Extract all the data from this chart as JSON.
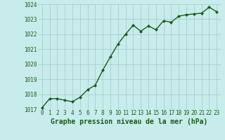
{
  "x": [
    0,
    1,
    2,
    3,
    4,
    5,
    6,
    7,
    8,
    9,
    10,
    11,
    12,
    13,
    14,
    15,
    16,
    17,
    18,
    19,
    20,
    21,
    22,
    23
  ],
  "y": [
    1017.1,
    1017.7,
    1017.7,
    1017.6,
    1017.5,
    1017.8,
    1018.3,
    1018.6,
    1019.6,
    1020.5,
    1021.35,
    1022.0,
    1022.6,
    1022.2,
    1022.55,
    1022.3,
    1022.9,
    1022.8,
    1023.2,
    1023.3,
    1023.35,
    1023.4,
    1023.8,
    1023.5
  ],
  "line_color": "#1a5c1a",
  "marker": "D",
  "marker_size": 2.0,
  "bg_color": "#c8ecec",
  "grid_color": "#a0c8c8",
  "title": "Graphe pression niveau de la mer (hPa)",
  "ylim": [
    1017.0,
    1024.0
  ],
  "xlim": [
    -0.5,
    23.5
  ],
  "yticks": [
    1017,
    1018,
    1019,
    1020,
    1021,
    1022,
    1023,
    1024
  ],
  "xticks": [
    0,
    1,
    2,
    3,
    4,
    5,
    6,
    7,
    8,
    9,
    10,
    11,
    12,
    13,
    14,
    15,
    16,
    17,
    18,
    19,
    20,
    21,
    22,
    23
  ],
  "title_fontsize": 7.0,
  "tick_fontsize": 5.5,
  "title_color": "#1a5c1a",
  "tick_color": "#1a5c1a",
  "linewidth": 1.0
}
